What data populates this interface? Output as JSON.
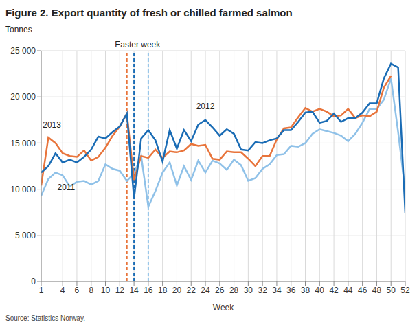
{
  "chart_data": {
    "type": "line",
    "title": "Figure 2. Export quantity of fresh or chilled farmed salmon",
    "y_label": "Tonnes",
    "x_label": "Week",
    "source": "Source: Statistics Norway.",
    "x": [
      1,
      2,
      3,
      4,
      5,
      6,
      7,
      8,
      9,
      10,
      11,
      12,
      13,
      14,
      15,
      16,
      17,
      18,
      19,
      20,
      21,
      22,
      23,
      24,
      25,
      26,
      27,
      28,
      29,
      30,
      31,
      32,
      33,
      34,
      35,
      36,
      37,
      38,
      39,
      40,
      41,
      42,
      43,
      44,
      45,
      46,
      47,
      48,
      49,
      50,
      51,
      52
    ],
    "xlim": [
      1,
      52
    ],
    "xticks": [
      1,
      4,
      6,
      8,
      10,
      12,
      14,
      16,
      18,
      20,
      22,
      24,
      26,
      28,
      30,
      32,
      34,
      36,
      38,
      40,
      42,
      44,
      46,
      48,
      50,
      52
    ],
    "ylim": [
      0,
      25000
    ],
    "yticks": [
      0,
      {
        "value": 5000,
        "label": "5 000"
      },
      {
        "value": 10000,
        "label": "10 000"
      },
      {
        "value": 15000,
        "label": "15 000"
      },
      {
        "value": 20000,
        "label": "20 000"
      },
      {
        "value": 25000,
        "label": "25 000"
      }
    ],
    "grid": true,
    "series": [
      {
        "name": "2011",
        "color": "#8fc1e8",
        "values": [
          9300,
          11100,
          11800,
          11500,
          10300,
          10800,
          10900,
          10500,
          10900,
          12700,
          12200,
          12000,
          10900,
          11700,
          13600,
          8100,
          9800,
          11800,
          12900,
          10400,
          12500,
          11000,
          13100,
          11800,
          13100,
          12800,
          12100,
          13200,
          12600,
          10900,
          11200,
          12200,
          12700,
          13700,
          13800,
          14700,
          14600,
          15000,
          16000,
          16500,
          16300,
          16100,
          15800,
          15200,
          16000,
          17200,
          18700,
          18700,
          19700,
          22000,
          16200,
          9800
        ]
      },
      {
        "name": "2013",
        "color": "#e8743b",
        "values": [
          10400,
          15600,
          15000,
          13900,
          13600,
          13500,
          14200,
          13100,
          13500,
          14500,
          15800,
          16800,
          18200,
          11000,
          13600,
          13400,
          14300,
          13400,
          14100,
          14000,
          14200,
          14900,
          14700,
          14800,
          13300,
          13200,
          14100,
          14000,
          14000,
          13300,
          12500,
          13600,
          13600,
          15400,
          16600,
          16700,
          17800,
          18800,
          18400,
          18700,
          18400,
          17900,
          18000,
          18700,
          17700,
          18000,
          17900,
          18400,
          21000,
          22300,
          null,
          null
        ]
      },
      {
        "name": "2012",
        "color": "#1a6cb5",
        "values": [
          11800,
          12500,
          13900,
          12900,
          13200,
          12900,
          13500,
          14300,
          15700,
          15500,
          16200,
          16800,
          18200,
          9000,
          15500,
          16400,
          15300,
          13000,
          16400,
          14400,
          16400,
          15200,
          17000,
          17500,
          16700,
          15800,
          16500,
          16000,
          14300,
          14200,
          15100,
          15000,
          15300,
          15500,
          16400,
          16400,
          17300,
          18300,
          18400,
          17200,
          17400,
          18200,
          17300,
          17700,
          17700,
          18300,
          19300,
          19300,
          22000,
          23600,
          23200,
          7400
        ]
      }
    ],
    "easter_lines": [
      {
        "x": 13,
        "color": "#e8743b"
      },
      {
        "x": 14,
        "color": "#1a6cb5"
      },
      {
        "x": 16,
        "color": "#8fc1e8"
      }
    ],
    "annotations": [
      {
        "text": "Easter week",
        "x": 14.5,
        "y": 25000
      },
      {
        "text": "2013",
        "x": 2.5,
        "y": 16300
      },
      {
        "text": "2012",
        "x": 24,
        "y": 18300
      },
      {
        "text": "2011",
        "x": 4.5,
        "y": 9500
      }
    ]
  }
}
